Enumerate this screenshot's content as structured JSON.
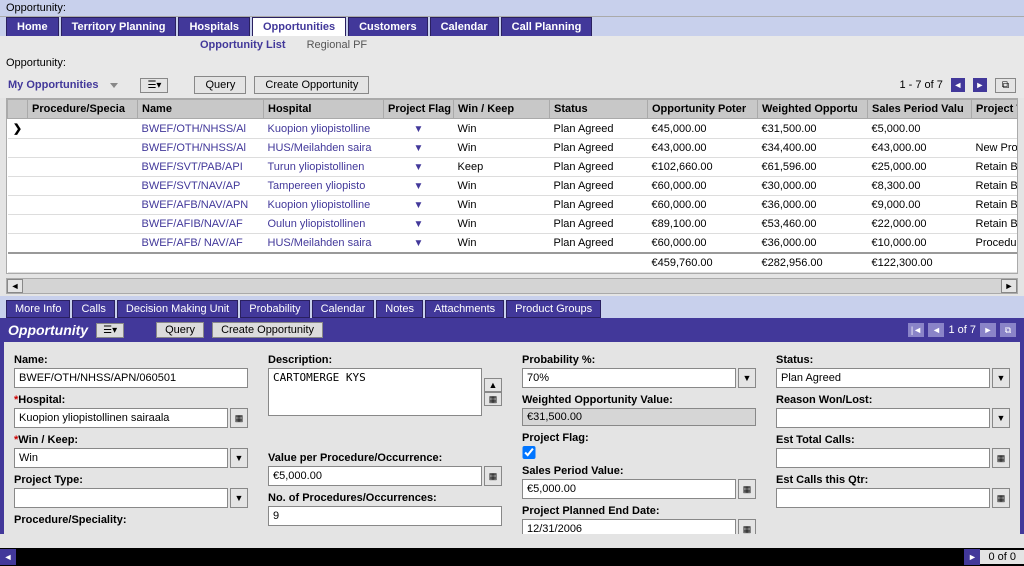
{
  "topLabel": "Opportunity:",
  "mainTabs": [
    {
      "label": "Home",
      "active": false
    },
    {
      "label": "Territory Planning",
      "active": false
    },
    {
      "label": "Hospitals",
      "active": false
    },
    {
      "label": "Opportunities",
      "active": true
    },
    {
      "label": "Customers",
      "active": false
    },
    {
      "label": "Calendar",
      "active": false
    },
    {
      "label": "Call Planning",
      "active": false
    }
  ],
  "subLinks": {
    "a": "Opportunity List",
    "b": "Regional PF"
  },
  "sectionLabel": "Opportunity:",
  "listToolbar": {
    "title": "My Opportunities",
    "queryBtn": "Query",
    "createBtn": "Create Opportunity",
    "pagerText": "1 - 7 of 7"
  },
  "columns": [
    "Procedure/Specia",
    "Name",
    "Hospital",
    "Project Flag",
    "Win / Keep",
    "Status",
    "Opportunity Poter",
    "Weighted Opportu",
    "Sales Period Valu",
    "Project Ty"
  ],
  "rows": [
    {
      "sel": "❯",
      "name": "BWEF/OTH/NHSS/Al",
      "hosp": "Kuopion yliopistolline",
      "flag": true,
      "wk": "Win",
      "status": "Plan Agreed",
      "pot": "€45,000.00",
      "wgt": "€31,500.00",
      "spv": "€5,000.00",
      "pt": ""
    },
    {
      "sel": "",
      "name": "BWEF/OTH/NHSS/Al",
      "hosp": "HUS/Meilahden saira",
      "flag": true,
      "wk": "Win",
      "status": "Plan Agreed",
      "pot": "€43,000.00",
      "wgt": "€34,400.00",
      "spv": "€43,000.00",
      "pt": "New Produ"
    },
    {
      "sel": "",
      "name": "BWEF/SVT/PAB/API",
      "hosp": "Turun yliopistollinen",
      "flag": true,
      "wk": "Keep",
      "status": "Plan Agreed",
      "pot": "€102,660.00",
      "wgt": "€61,596.00",
      "spv": "€25,000.00",
      "pt": "Retain Busi"
    },
    {
      "sel": "",
      "name": "BWEF/SVT/NAV/AP",
      "hosp": "Tampereen yliopisto",
      "flag": true,
      "wk": "Win",
      "status": "Plan Agreed",
      "pot": "€60,000.00",
      "wgt": "€30,000.00",
      "spv": "€8,300.00",
      "pt": "Retain Busi"
    },
    {
      "sel": "",
      "name": "BWEF/AFB/NAV/APN",
      "hosp": "Kuopion yliopistolline",
      "flag": true,
      "wk": "Win",
      "status": "Plan Agreed",
      "pot": "€60,000.00",
      "wgt": "€36,000.00",
      "spv": "€9,000.00",
      "pt": "Retain Busi"
    },
    {
      "sel": "",
      "name": "BWEF/AFIB/NAV/AF",
      "hosp": "Oulun yliopistollinen",
      "flag": true,
      "wk": "Win",
      "status": "Plan Agreed",
      "pot": "€89,100.00",
      "wgt": "€53,460.00",
      "spv": "€22,000.00",
      "pt": "Retain Busi"
    },
    {
      "sel": "",
      "name": "BWEF/AFB/ NAV/AF",
      "hosp": "HUS/Meilahden saira",
      "flag": true,
      "wk": "Win",
      "status": "Plan Agreed",
      "pot": "€60,000.00",
      "wgt": "€36,000.00",
      "spv": "€10,000.00",
      "pt": "Procedure"
    }
  ],
  "totals": {
    "pot": "€459,760.00",
    "wgt": "€282,956.00",
    "spv": "€122,300.00"
  },
  "detailTabs": [
    "More Info",
    "Calls",
    "Decision Making Unit",
    "Probability",
    "Calendar",
    "Notes",
    "Attachments",
    "Product Groups"
  ],
  "detailHeader": {
    "title": "Opportunity",
    "queryBtn": "Query",
    "createBtn": "Create Opportunity",
    "pagerText": "1 of 7"
  },
  "form": {
    "name": {
      "label": "Name:",
      "value": "BWEF/OTH/NHSS/APN/060501"
    },
    "hospital": {
      "label": "Hospital:",
      "value": "Kuopion yliopistollinen sairaala"
    },
    "winkeep": {
      "label": "Win / Keep:",
      "value": "Win"
    },
    "projType": {
      "label": "Project Type:",
      "value": ""
    },
    "procSpec": {
      "label": "Procedure/Speciality:"
    },
    "description": {
      "label": "Description:",
      "value": "CARTOMERGE KYS"
    },
    "valPerProc": {
      "label": "Value per Procedure/Occurrence:",
      "value": "€5,000.00"
    },
    "numProc": {
      "label": "No. of Procedures/Occurrences:",
      "value": "9"
    },
    "probPct": {
      "label": "Probability %:",
      "value": "70%"
    },
    "wov": {
      "label": "Weighted Opportunity Value:",
      "value": "€31,500.00"
    },
    "projFlag": {
      "label": "Project Flag:",
      "checked": true
    },
    "salesPeriodVal": {
      "label": "Sales Period Value:",
      "value": "€5,000.00"
    },
    "plannedEnd": {
      "label": "Project Planned End Date:",
      "value": "12/31/2006"
    },
    "status": {
      "label": "Status:",
      "value": "Plan Agreed"
    },
    "reasonWL": {
      "label": "Reason Won/Lost:",
      "value": ""
    },
    "estTotal": {
      "label": "Est Total Calls:",
      "value": ""
    },
    "estQtr": {
      "label": "Est Calls this Qtr:",
      "value": ""
    }
  },
  "bottomPager": "0 of 0"
}
